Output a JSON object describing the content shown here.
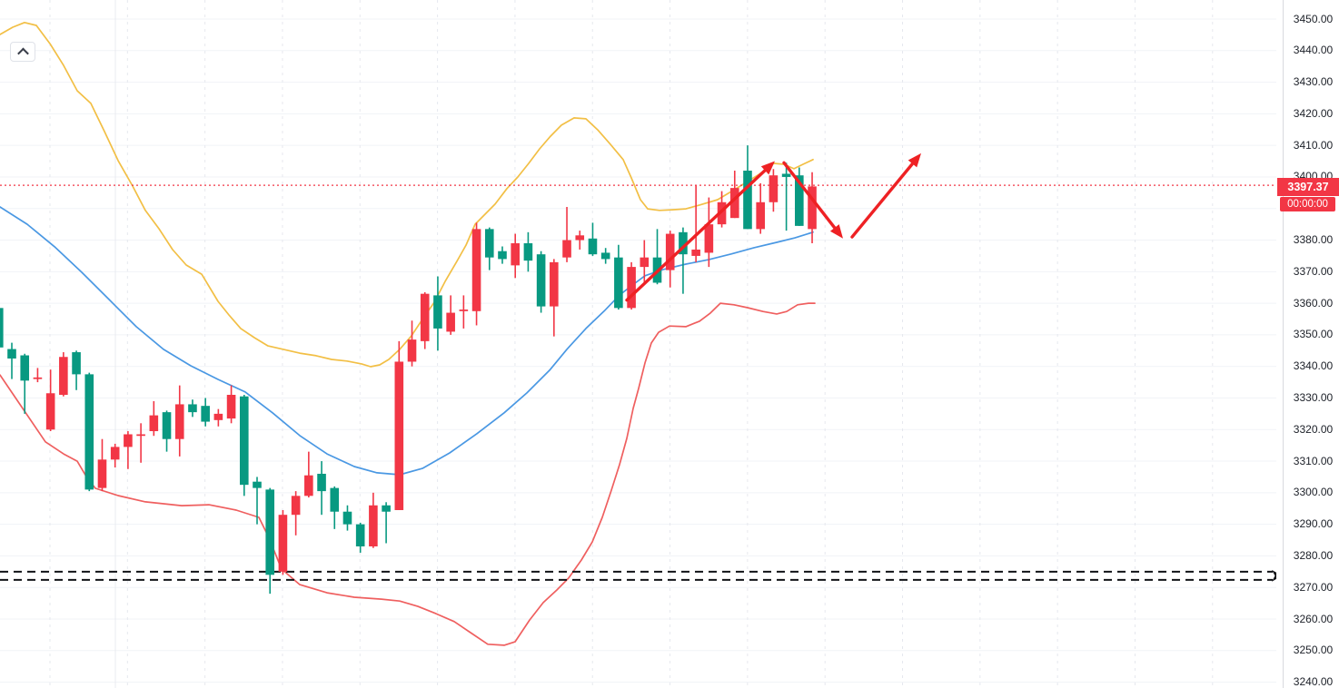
{
  "app": {
    "collapse_button": {
      "icon": "chevron-up"
    }
  },
  "axis": {
    "side": "right",
    "ticks": [
      "3450.00",
      "3440.00",
      "3430.00",
      "3420.00",
      "3410.00",
      "3400.00",
      "3390.00",
      "3380.00",
      "3370.00",
      "3360.00",
      "3350.00",
      "3340.00",
      "3330.00",
      "3320.00",
      "3310.00",
      "3300.00",
      "3290.00",
      "3280.00",
      "3270.00",
      "3260.00",
      "3250.00",
      "3240.00"
    ],
    "price_label": {
      "value": "3397.37",
      "countdown": "00:00:00",
      "bg": "#f23645",
      "price": 3397.37
    }
  },
  "chart_data": {
    "type": "candlestick",
    "title": "",
    "ylim": [
      3240,
      3450
    ],
    "y_step": 10,
    "grid": {
      "horizontal": true,
      "vertical_dashed": true
    },
    "colors": {
      "up": "#089981",
      "down": "#f23645",
      "upper_band": "#f2bf45",
      "middle_band": "#4a98e3",
      "lower_band": "#ef5f5f",
      "price_line": "#f23645",
      "channel": "#111317",
      "arrow": "#ee2124",
      "grid_h": "#f1f3f7",
      "grid_v": "#e6e8ee",
      "session_line": "#e9ebf0"
    },
    "candles": [
      [
        3346,
        3359,
        3345.5,
        3358.5
      ],
      [
        3342.5,
        3347.5,
        3336,
        3345.5
      ],
      [
        3335.5,
        3344,
        3325,
        3343.5
      ],
      [
        3336.5,
        3339.5,
        3335,
        3336
      ],
      [
        3331.5,
        3339,
        3319.5,
        3320
      ],
      [
        3343,
        3344.5,
        3330.5,
        3331
      ],
      [
        3337.5,
        3345,
        3332.5,
        3344.5
      ],
      [
        3301,
        3338,
        3300.5,
        3337.5
      ],
      [
        3310.5,
        3317,
        3300.5,
        3301.5
      ],
      [
        3314.5,
        3315.5,
        3308,
        3310.5
      ],
      [
        3318.5,
        3319.5,
        3307.5,
        3314.5
      ],
      [
        3318.5,
        3322,
        3309.5,
        3318
      ],
      [
        3324.5,
        3329,
        3318,
        3319.5
      ],
      [
        3317,
        3326,
        3313,
        3325.5
      ],
      [
        3328,
        3334,
        3311.5,
        3317
      ],
      [
        3325.5,
        3329.5,
        3324,
        3328
      ],
      [
        3322.5,
        3330,
        3321,
        3327.5
      ],
      [
        3325,
        3326.5,
        3321,
        3323
      ],
      [
        3331,
        3334,
        3322,
        3323.5
      ],
      [
        3302.5,
        3331,
        3299,
        3330.5
      ],
      [
        3301.5,
        3305,
        3290,
        3303.5
      ],
      [
        3274,
        3301.5,
        3268,
        3301
      ],
      [
        3293,
        3294.5,
        3274,
        3275
      ],
      [
        3299,
        3300.5,
        3286.5,
        3293
      ],
      [
        3305.5,
        3313,
        3298.5,
        3299
      ],
      [
        3300.5,
        3310,
        3293,
        3306
      ],
      [
        3294,
        3302,
        3288.5,
        3301.5
      ],
      [
        3290,
        3296,
        3288,
        3294
      ],
      [
        3283,
        3290.5,
        3281,
        3290
      ],
      [
        3296,
        3300,
        3282.5,
        3283
      ],
      [
        3294,
        3297,
        3284,
        3296
      ],
      [
        3341.5,
        3348,
        3294.5,
        3294.5
      ],
      [
        3348.5,
        3354.5,
        3340,
        3341.5
      ],
      [
        3363,
        3363.5,
        3345.5,
        3348
      ],
      [
        3352,
        3368.5,
        3345,
        3362.5
      ],
      [
        3357,
        3362.5,
        3350,
        3351
      ],
      [
        3358,
        3362.5,
        3352,
        3357.5
      ],
      [
        3383.5,
        3385.5,
        3353,
        3357.5
      ],
      [
        3374.5,
        3384,
        3370.5,
        3383.5
      ],
      [
        3374,
        3378,
        3372.5,
        3376.5
      ],
      [
        3379,
        3382,
        3368,
        3372
      ],
      [
        3373.5,
        3382.5,
        3370,
        3379
      ],
      [
        3359,
        3376.5,
        3357,
        3375.5
      ],
      [
        3373,
        3374,
        3349.5,
        3359
      ],
      [
        3380,
        3390.5,
        3373,
        3374.5
      ],
      [
        3381.5,
        3383,
        3377,
        3380
      ],
      [
        3375.5,
        3385.5,
        3375,
        3380.5
      ],
      [
        3374,
        3377.5,
        3372.5,
        3376
      ],
      [
        3358.5,
        3378.5,
        3358,
        3374.5
      ],
      [
        3371.5,
        3373,
        3358,
        3358.5
      ],
      [
        3374.5,
        3380,
        3366.5,
        3371.5
      ],
      [
        3366.5,
        3383.5,
        3366,
        3374.5
      ],
      [
        3382,
        3383,
        3365,
        3370.5
      ],
      [
        3375.5,
        3384,
        3363,
        3382.5
      ],
      [
        3377,
        3397.5,
        3373,
        3375
      ],
      [
        3385,
        3393.5,
        3371.5,
        3376
      ],
      [
        3392,
        3395.5,
        3384,
        3385
      ],
      [
        3396.5,
        3402,
        3387,
        3387
      ],
      [
        3383.5,
        3410,
        3383.5,
        3402
      ],
      [
        3392,
        3398,
        3382,
        3383.5
      ],
      [
        3400.5,
        3402.5,
        3389,
        3392
      ],
      [
        3400,
        3404.5,
        3383,
        3401
      ],
      [
        3384.5,
        3403,
        3384.5,
        3400.5
      ],
      [
        3397,
        3401.5,
        3379,
        3383.5
      ]
    ],
    "overlays": [
      {
        "name": "upper-band",
        "color_key": "upper_band",
        "points": [
          [
            0,
            3445.1
          ],
          [
            14,
            3447.4
          ],
          [
            27,
            3448.9
          ],
          [
            40,
            3448
          ],
          [
            55,
            3442.2
          ],
          [
            70,
            3435.3
          ],
          [
            85,
            3427.3
          ],
          [
            100,
            3423.3
          ],
          [
            115,
            3414.4
          ],
          [
            130,
            3405.2
          ],
          [
            146,
            3397.1
          ],
          [
            160,
            3389.4
          ],
          [
            175,
            3383.6
          ],
          [
            190,
            3377
          ],
          [
            205,
            3372.1
          ],
          [
            222,
            3369.2
          ],
          [
            240,
            3360.6
          ],
          [
            252,
            3356.3
          ],
          [
            265,
            3352
          ],
          [
            280,
            3349.1
          ],
          [
            295,
            3346.5
          ],
          [
            312,
            3345.4
          ],
          [
            330,
            3344.2
          ],
          [
            348,
            3343.4
          ],
          [
            365,
            3342.2
          ],
          [
            382,
            3341.7
          ],
          [
            398,
            3340.8
          ],
          [
            408,
            3339.9
          ],
          [
            418,
            3340.5
          ],
          [
            428,
            3342.2
          ],
          [
            440,
            3345.4
          ],
          [
            453,
            3349.7
          ],
          [
            465,
            3354.9
          ],
          [
            478,
            3360.3
          ],
          [
            490,
            3366.9
          ],
          [
            503,
            3373.3
          ],
          [
            513,
            3378.4
          ],
          [
            523,
            3385
          ],
          [
            533,
            3387.9
          ],
          [
            545,
            3391.4
          ],
          [
            558,
            3396.3
          ],
          [
            570,
            3400
          ],
          [
            582,
            3404.3
          ],
          [
            594,
            3408.9
          ],
          [
            606,
            3412.9
          ],
          [
            618,
            3416.4
          ],
          [
            632,
            3418.7
          ],
          [
            645,
            3418.4
          ],
          [
            658,
            3414.9
          ],
          [
            672,
            3410.3
          ],
          [
            686,
            3405.5
          ],
          [
            695,
            3399.7
          ],
          [
            705,
            3392.8
          ],
          [
            713,
            3389.9
          ],
          [
            726,
            3389.4
          ],
          [
            740,
            3389.6
          ],
          [
            755,
            3389.9
          ],
          [
            770,
            3391.1
          ],
          [
            790,
            3392.8
          ],
          [
            805,
            3395.4
          ],
          [
            820,
            3398
          ],
          [
            836,
            3400.9
          ],
          [
            852,
            3404.3
          ],
          [
            863,
            3404
          ],
          [
            874,
            3402.6
          ],
          [
            884,
            3404
          ],
          [
            895,
            3405.5
          ]
        ]
      },
      {
        "name": "middle-band",
        "color_key": "middle_band",
        "points": [
          [
            0,
            3390.5
          ],
          [
            30,
            3385
          ],
          [
            60,
            3377.9
          ],
          [
            90,
            3369.8
          ],
          [
            120,
            3361.2
          ],
          [
            150,
            3352.6
          ],
          [
            180,
            3345.4
          ],
          [
            210,
            3340.2
          ],
          [
            240,
            3335.9
          ],
          [
            270,
            3331.9
          ],
          [
            300,
            3325.3
          ],
          [
            330,
            3318.1
          ],
          [
            360,
            3312.3
          ],
          [
            390,
            3308.3
          ],
          [
            415,
            3306.3
          ],
          [
            440,
            3305.7
          ],
          [
            465,
            3307.7
          ],
          [
            495,
            3312.6
          ],
          [
            525,
            3318.7
          ],
          [
            555,
            3325.3
          ],
          [
            580,
            3331.6
          ],
          [
            605,
            3338.8
          ],
          [
            624,
            3345.4
          ],
          [
            645,
            3352
          ],
          [
            665,
            3357.5
          ],
          [
            682,
            3362.6
          ],
          [
            695,
            3365.5
          ],
          [
            710,
            3368.7
          ],
          [
            730,
            3370.7
          ],
          [
            755,
            3372.4
          ],
          [
            780,
            3373.8
          ],
          [
            805,
            3375.6
          ],
          [
            830,
            3377.6
          ],
          [
            855,
            3379.3
          ],
          [
            875,
            3380.7
          ],
          [
            895,
            3382.5
          ]
        ]
      },
      {
        "name": "lower-band",
        "color_key": "lower_band",
        "points": [
          [
            0,
            3337.3
          ],
          [
            25,
            3326.7
          ],
          [
            50,
            3316.1
          ],
          [
            70,
            3312.3
          ],
          [
            85,
            3310
          ],
          [
            95,
            3305.1
          ],
          [
            105,
            3301.4
          ],
          [
            130,
            3299.1
          ],
          [
            160,
            3297.1
          ],
          [
            200,
            3295.9
          ],
          [
            230,
            3296.2
          ],
          [
            260,
            3294.5
          ],
          [
            285,
            3292.2
          ],
          [
            295,
            3286.4
          ],
          [
            310,
            3275.8
          ],
          [
            330,
            3270.9
          ],
          [
            360,
            3268.3
          ],
          [
            390,
            3266.9
          ],
          [
            420,
            3266.3
          ],
          [
            440,
            3265.7
          ],
          [
            460,
            3264
          ],
          [
            480,
            3261.7
          ],
          [
            500,
            3259.2
          ],
          [
            518,
            3255.7
          ],
          [
            537,
            3252
          ],
          [
            555,
            3251.7
          ],
          [
            567,
            3252.8
          ],
          [
            583,
            3259.7
          ],
          [
            598,
            3265.2
          ],
          [
            613,
            3269.2
          ],
          [
            626,
            3273
          ],
          [
            640,
            3278.7
          ],
          [
            652,
            3284.4
          ],
          [
            663,
            3292.2
          ],
          [
            673,
            3300.8
          ],
          [
            682,
            3308.9
          ],
          [
            690,
            3317.2
          ],
          [
            697,
            3326.7
          ],
          [
            703,
            3333
          ],
          [
            710,
            3341.1
          ],
          [
            717,
            3347.4
          ],
          [
            725,
            3350.8
          ],
          [
            737,
            3352.8
          ],
          [
            755,
            3352.6
          ],
          [
            770,
            3354.3
          ],
          [
            782,
            3356.9
          ],
          [
            793,
            3360
          ],
          [
            808,
            3359.5
          ],
          [
            823,
            3358.6
          ],
          [
            840,
            3357.4
          ],
          [
            855,
            3356.6
          ],
          [
            866,
            3357.4
          ],
          [
            878,
            3359.5
          ],
          [
            890,
            3360
          ],
          [
            897,
            3360
          ]
        ]
      }
    ],
    "annotations": {
      "price_line": {
        "price": 3397.37,
        "style": "dotted"
      },
      "channel_lines": {
        "prices": [
          3275,
          3272.4
        ],
        "style": "dashed",
        "arrow_at_axis": true
      },
      "arrows": [
        {
          "from": [
            690,
            3361
          ],
          "to": [
            853,
            3405
          ],
          "direction": "up"
        },
        {
          "from": [
            863,
            3404.5
          ],
          "to": [
            928,
            3380.5
          ],
          "direction": "down"
        },
        {
          "from": [
            938,
            3381
          ],
          "to": [
            1014,
            3407.5
          ],
          "direction": "up"
        }
      ]
    }
  }
}
